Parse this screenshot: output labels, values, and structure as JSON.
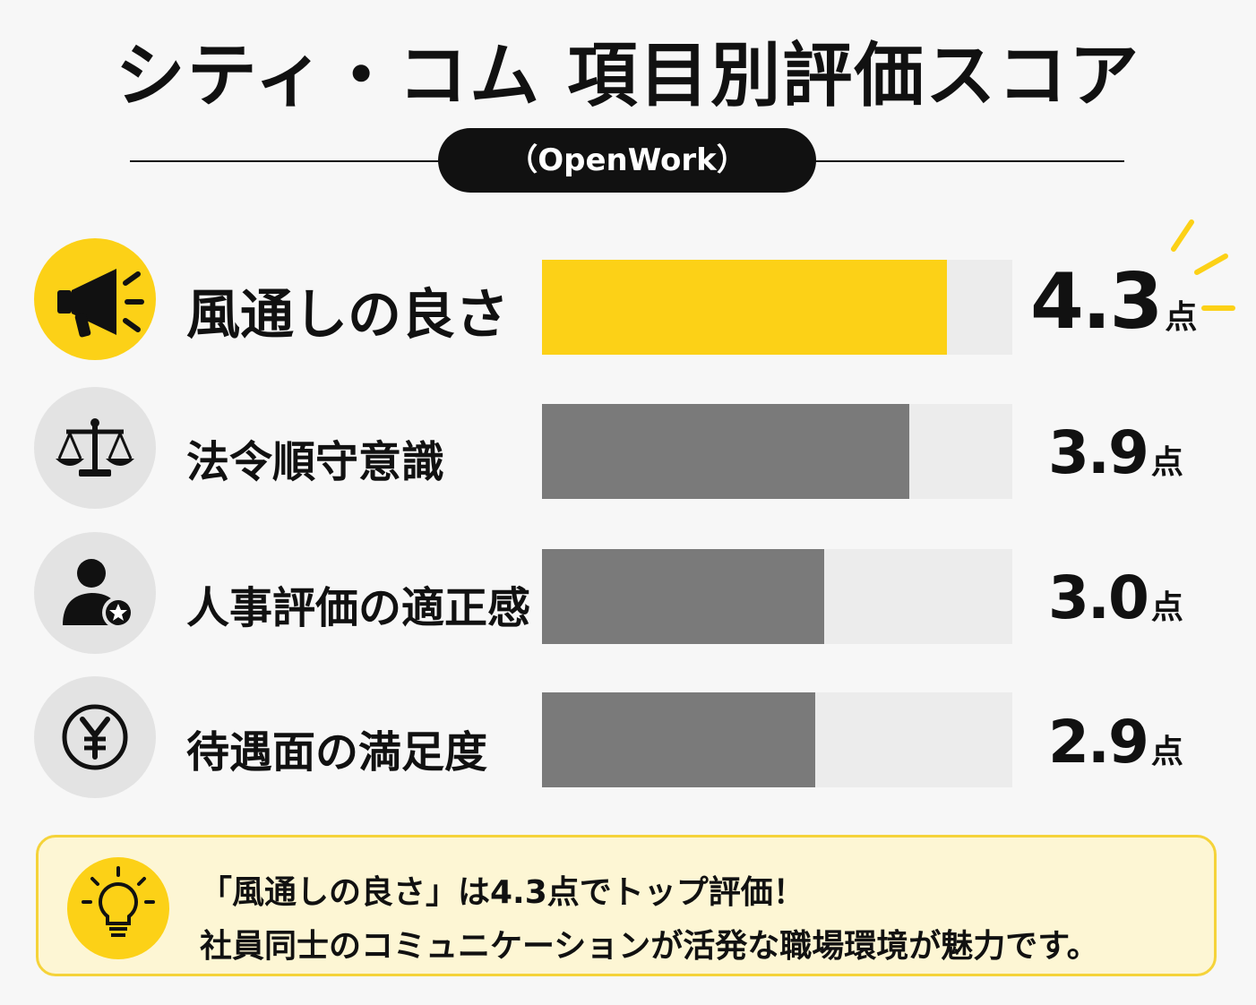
{
  "title": "シティ・コム 項目別評価スコア",
  "source": "（OpenWork）",
  "chart_data": {
    "type": "bar",
    "orientation": "horizontal",
    "categories": [
      "風通しの良さ",
      "法令順守意識",
      "人事評価の適正感",
      "待遇面の満足度"
    ],
    "values": [
      4.3,
      3.9,
      3.0,
      2.9
    ],
    "value_labels": [
      "4.3",
      "3.9",
      "3.0",
      "2.9"
    ],
    "unit": "点",
    "xlim": [
      0,
      5
    ],
    "highlight_index": 0,
    "grid": false,
    "legend": "none"
  },
  "icons": [
    "megaphone-icon",
    "scales-icon",
    "user-star-icon",
    "yen-icon",
    "lightbulb-icon"
  ],
  "colors": {
    "accent": "#fcd117",
    "bar": "#7a7a7a",
    "track": "#ececec",
    "note_bg": "#fdf6d4"
  },
  "note": {
    "line1": "「風通しの良さ」は4.3点でトップ評価！",
    "line2": "社員同士のコミュニケーションが活発な職場環境が魅力です。"
  }
}
